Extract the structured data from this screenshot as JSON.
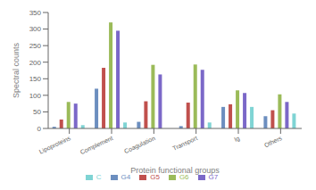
{
  "chart_data": {
    "type": "bar",
    "categories": [
      "Lipoproteins",
      "Complement",
      "Coagulation",
      "Transport",
      "Ig",
      "Others"
    ],
    "series": [
      {
        "name": "G4",
        "color": "#6C8EBF",
        "values": [
          5,
          120,
          20,
          7,
          65,
          37
        ]
      },
      {
        "name": "G5",
        "color": "#C0504D",
        "values": [
          27,
          183,
          82,
          78,
          73,
          55
        ]
      },
      {
        "name": "G6",
        "color": "#9BBB59",
        "values": [
          80,
          320,
          192,
          193,
          115,
          103
        ]
      },
      {
        "name": "G7",
        "color": "#7B68C8",
        "values": [
          75,
          295,
          163,
          177,
          107,
          80
        ]
      },
      {
        "name": "C",
        "color": "#7FD4D4",
        "values": [
          10,
          18,
          0,
          18,
          65,
          45
        ]
      }
    ],
    "xlabel": "Protein functional groups",
    "ylabel": "Spectral counts",
    "ylim": [
      0,
      350
    ],
    "yticks": [
      0,
      50,
      100,
      150,
      200,
      250,
      300,
      350
    ],
    "grid": false,
    "legend": "bottom"
  }
}
